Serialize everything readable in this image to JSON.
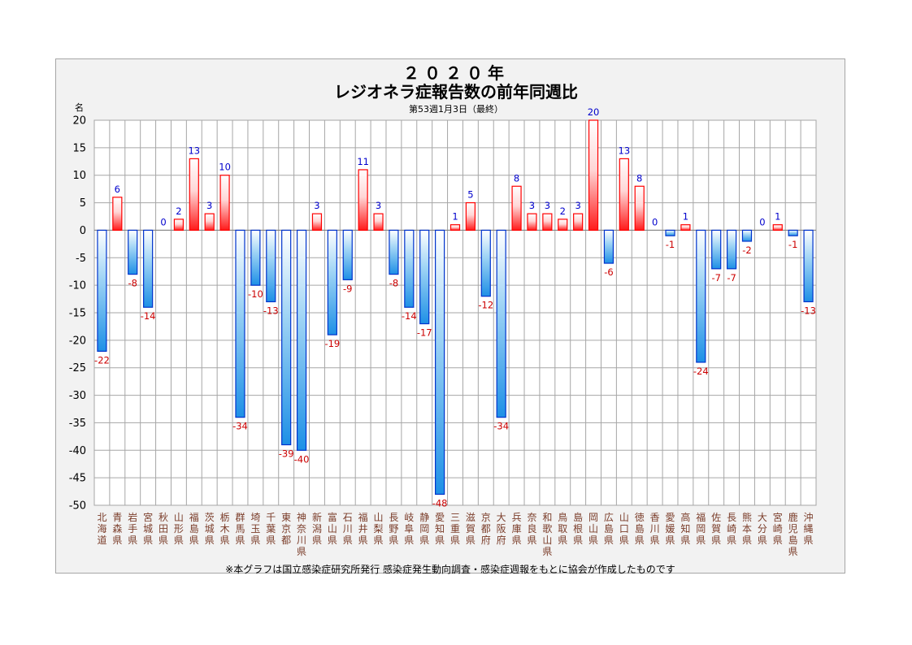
{
  "chart_data": {
    "type": "bar",
    "title_line1": "２０２０年",
    "title_line2": "レジオネラ症報告数の前年同週比",
    "subtitle": "第53週1月3日（最終）",
    "ylabel": "名",
    "footnote": "※本グラフは国立感染症研究所発行 感染症発生動向調査・感染症週報をもとに協会が作成したものです",
    "ylim": [
      -50,
      20
    ],
    "yticks": [
      20,
      15,
      10,
      5,
      0,
      -5,
      -10,
      -15,
      -20,
      -25,
      -30,
      -35,
      -40,
      -45,
      -50
    ],
    "grid": true,
    "categories": [
      "北海道",
      "青森県",
      "岩手県",
      "宮城県",
      "秋田県",
      "山形県",
      "福島県",
      "茨城県",
      "栃木県",
      "群馬県",
      "埼玉県",
      "千葉県",
      "東京都",
      "神奈川県",
      "新潟県",
      "富山県",
      "石川県",
      "福井県",
      "山梨県",
      "長野県",
      "岐阜県",
      "静岡県",
      "愛知県",
      "三重県",
      "滋賀県",
      "京都府",
      "大阪府",
      "兵庫県",
      "奈良県",
      "和歌山県",
      "鳥取県",
      "島根県",
      "岡山県",
      "広島県",
      "山口県",
      "徳島県",
      "香川県",
      "愛媛県",
      "高知県",
      "福岡県",
      "佐賀県",
      "長崎県",
      "熊本県",
      "大分県",
      "宮崎県",
      "鹿児島県",
      "沖縄県"
    ],
    "values": [
      -22,
      6,
      -8,
      -14,
      0,
      2,
      13,
      3,
      10,
      -34,
      -10,
      -13,
      -39,
      -40,
      3,
      -19,
      -9,
      11,
      3,
      -8,
      -14,
      -17,
      -48,
      1,
      5,
      -12,
      -34,
      8,
      3,
      3,
      2,
      3,
      20,
      -6,
      13,
      8,
      0,
      -1,
      1,
      -24,
      -7,
      -7,
      -2,
      0,
      1,
      -1,
      -13
    ],
    "colors": {
      "positive": "#ff0000",
      "negative": "#0033cc",
      "positive_label": "#0000cc",
      "negative_label": "#cc0000",
      "grid": "#a6a6a6",
      "background": "#f2f2f2"
    }
  }
}
